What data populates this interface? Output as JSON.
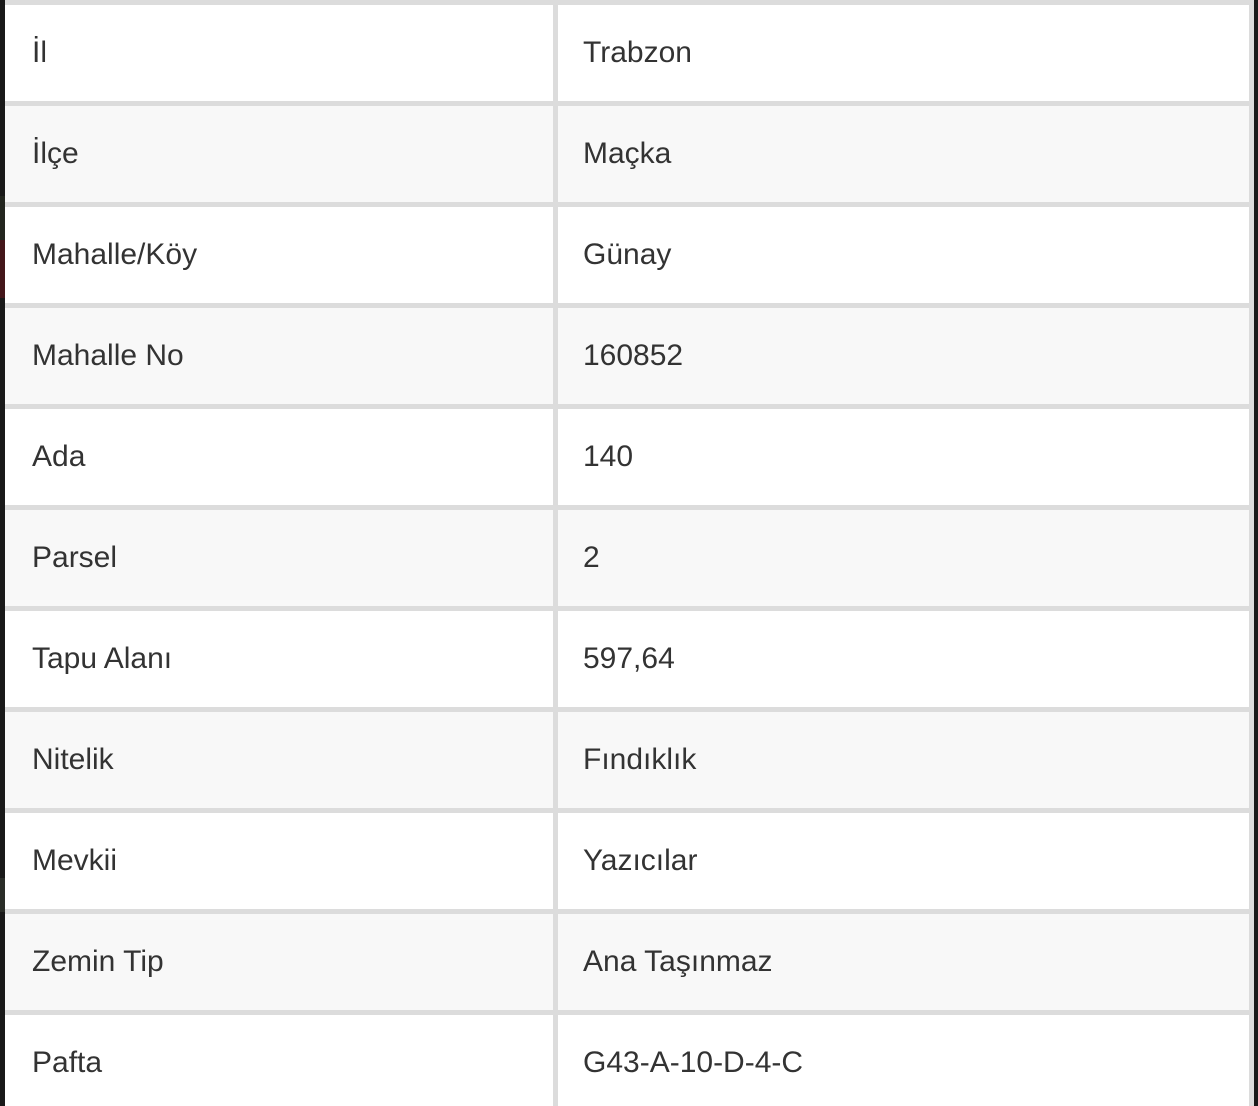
{
  "table": {
    "name": "parcel-attribute-table",
    "rows": [
      {
        "label": "İl",
        "value": "Trabzon"
      },
      {
        "label": "İlçe",
        "value": "Maçka"
      },
      {
        "label": "Mahalle/Köy",
        "value": "Günay"
      },
      {
        "label": "Mahalle No",
        "value": "160852"
      },
      {
        "label": "Ada",
        "value": "140"
      },
      {
        "label": "Parsel",
        "value": "2"
      },
      {
        "label": "Tapu Alanı",
        "value": "597,64"
      },
      {
        "label": "Nitelik",
        "value": "Fındıklık"
      },
      {
        "label": "Mevkii",
        "value": "Yazıcılar"
      },
      {
        "label": "Zemin Tip",
        "value": "Ana Taşınmaz"
      },
      {
        "label": "Pafta",
        "value": "G43-A-10-D-4-C"
      }
    ]
  },
  "colors": {
    "row_white": "#ffffff",
    "row_alt": "#f8f8f8",
    "border": "#dcdcdc",
    "text": "#333333",
    "edge_dark": "#191919",
    "edge_red": "#44161a",
    "edge_green": "#23261f",
    "edge_gray": "#2a2d28"
  }
}
